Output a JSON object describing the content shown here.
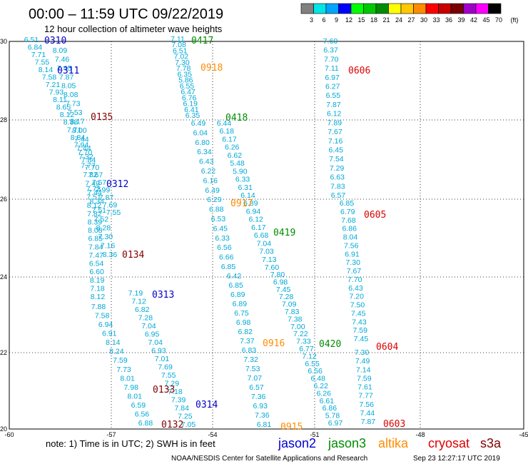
{
  "header": {
    "title": "00:00 – 11:59 UTC 09/22/2019",
    "subtitle": "12 hour collection of altimeter wave heights"
  },
  "scale": {
    "labels": [
      "3",
      "6",
      "9",
      "12",
      "15",
      "18",
      "21",
      "24",
      "27",
      "30",
      "33",
      "36",
      "39",
      "42",
      "45",
      "70"
    ],
    "unit": "(ft)",
    "colors": [
      "#808080",
      "#00e5e5",
      "#00a5ff",
      "#0000ff",
      "#00ff00",
      "#00c800",
      "#008c00",
      "#ffff00",
      "#ffc800",
      "#ff8c00",
      "#ff0000",
      "#c80000",
      "#780000",
      "#a000c8",
      "#ff00ff",
      "#000000"
    ]
  },
  "map": {
    "x_ticks": [
      "-60",
      "-57",
      "-54",
      "-51",
      "-48",
      "-45"
    ],
    "y_ticks": [
      "30",
      "28",
      "26",
      "24",
      "22",
      "20"
    ],
    "value_color": "#00a8d6"
  },
  "tracks": [
    {
      "id": "0310",
      "color": "#0000cc",
      "values": [
        "6.51",
        "6.84",
        "7.71",
        "7.55",
        "8.14",
        "7.58",
        "7.21",
        "7.93",
        "8.11",
        "8.65",
        "8.12",
        "8.38",
        "7.71",
        "8.84",
        "7.94",
        "7.70",
        "7.84",
        "7.70",
        "7.67",
        "7.57",
        "7.99",
        "7.87",
        "7.69",
        "7.55"
      ]
    },
    {
      "id": "0311",
      "color": "#0000cc",
      "values": [
        "8.09",
        "7.46",
        "7.45",
        "7.87",
        "8.05",
        "8.08",
        "7.73",
        "7.53",
        "8.17",
        "8.00",
        "7.44",
        "7.44",
        "7.32",
        "7.77",
        "7.82",
        "7.49",
        "7.44",
        "8.34",
        "7.51",
        "7.52",
        "8.28",
        "7.30",
        "7.16",
        "8.36"
      ]
    },
    {
      "id": "0312",
      "color": "#0000cc",
      "values": [
        "7.73",
        "7.51",
        "8.12",
        "7.82",
        "8.39",
        "8.08",
        "6.85",
        "7.84",
        "7.47",
        "6.54",
        "6.60",
        "8.19",
        "7.18",
        "8.12"
      ]
    },
    {
      "id": "0313",
      "color": "#0000cc",
      "values": [
        "7.19",
        "7.12",
        "6.82",
        "7.28",
        "7.04",
        "6.95",
        "7.04",
        "6.93",
        "7.01",
        "7.69",
        "7.55",
        "7.29",
        "7.18",
        "7.39",
        "7.84",
        "7.25",
        "7.05"
      ]
    },
    {
      "id": "0314",
      "color": "#0000cc",
      "values": [
        "7.88",
        "7.58",
        "6.94",
        "6.91",
        "8.14",
        "8.24",
        "7.59",
        "7.73",
        "8.01",
        "7.98",
        "8.01",
        "6.59",
        "6.56",
        "6.88"
      ]
    },
    {
      "id": "0417",
      "color": "#008c00",
      "values": [
        "7.11",
        "7.08",
        "6.51",
        "7.02",
        "7.30",
        "7.78",
        "6.35",
        "5.86",
        "6.55",
        "6.47",
        "6.76",
        "6.19",
        "6.41",
        "6.35"
      ]
    },
    {
      "id": "0418",
      "color": "#008c00",
      "values": [
        "6.49",
        "6.04",
        "6.80",
        "6.34",
        "6.43",
        "6.22",
        "6.16",
        "6.49",
        "6.29",
        "6.88",
        "6.53",
        "6.45",
        "6.33",
        "6.56",
        "6.66",
        "6.85"
      ]
    },
    {
      "id": "0419",
      "color": "#008c00",
      "values": [
        "6.44",
        "6.18",
        "6.17",
        "6.26",
        "6.62",
        "5.48",
        "5.90",
        "6.33",
        "6.31",
        "6.14",
        "6.89",
        "6.94",
        "6.12",
        "6.17",
        "6.68",
        "7.04",
        "7.03",
        "7.13",
        "7.60"
      ]
    },
    {
      "id": "0420",
      "color": "#008c00",
      "values": [
        "6.42",
        "6.85",
        "6.89",
        "6.89",
        "6.75",
        "6.98",
        "6.82",
        "7.37",
        "6.83",
        "7.32",
        "7.53",
        "7.07",
        "6.57",
        "7.36",
        "6.93",
        "7.36",
        "6.81"
      ]
    },
    {
      "id": "0605",
      "color": "#dd0000",
      "values": [
        "7.60",
        "6.37",
        "7.70",
        "7.11",
        "6.97",
        "6.27",
        "6.55",
        "7.87",
        "6.12",
        "7.89",
        "7.67",
        "7.16",
        "6.45",
        "7.54",
        "7.29",
        "6.63",
        "7.83",
        "6.57"
      ]
    },
    {
      "id": "0604",
      "color": "#dd0000",
      "values": [
        "6.85",
        "6.79",
        "7.68",
        "6.86",
        "8.04",
        "7.56",
        "6.91",
        "7.30",
        "7.67",
        "7.70",
        "6.43",
        "7.20",
        "7.50",
        "7.45",
        "7.43",
        "7.59",
        "7.45"
      ]
    },
    {
      "id": "0603",
      "color": "#dd0000",
      "values": [
        "7.30",
        "7.49",
        "7.14",
        "7.59",
        "7.61",
        "7.77",
        "7.56",
        "7.44",
        "7.87"
      ]
    },
    {
      "id": "0916",
      "color": "#ff8c00",
      "values": [
        "7.80",
        "6.98",
        "7.45",
        "7.28",
        "7.09",
        "7.83",
        "7.38",
        "7.00",
        "7.22",
        "7.33",
        "6.77",
        "7.12",
        "6.55",
        "6.56",
        "6.48",
        "6.22",
        "6.26",
        "6.61",
        "6.86",
        "5.78",
        "6.97"
      ]
    },
    {
      "id": "0135",
      "color": "#800000",
      "values": []
    },
    {
      "id": "0134",
      "color": "#800000",
      "values": []
    },
    {
      "id": "0133",
      "color": "#800000",
      "values": []
    },
    {
      "id": "0132",
      "color": "#800000",
      "values": []
    },
    {
      "id": "0917",
      "color": "#ff8c00",
      "values": []
    },
    {
      "id": "0918",
      "color": "#ff8c00",
      "values": []
    },
    {
      "id": "0915",
      "color": "#ff8c00",
      "values": []
    },
    {
      "id": "0606",
      "color": "#dd0000",
      "values": []
    }
  ],
  "footer": {
    "note": "note:  1) Time is in UTC;  2) SWH is in feet",
    "legend": [
      {
        "label": "jason2",
        "color": "#0000cc"
      },
      {
        "label": "jason3",
        "color": "#008c00"
      },
      {
        "label": "altika",
        "color": "#ff8c00"
      },
      {
        "label": "cryosat",
        "color": "#dd0000"
      },
      {
        "label": "s3a",
        "color": "#800000"
      }
    ],
    "credit": "NOAA/NESDIS Center for Satellite Applications and Research",
    "timestamp": "Sep 23 12:27:17 UTC 2019"
  }
}
